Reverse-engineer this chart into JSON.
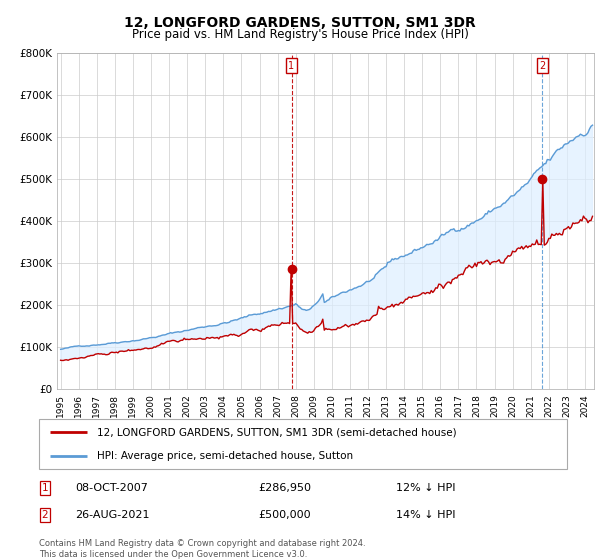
{
  "title": "12, LONGFORD GARDENS, SUTTON, SM1 3DR",
  "subtitle": "Price paid vs. HM Land Registry's House Price Index (HPI)",
  "ylim": [
    0,
    800000
  ],
  "yticks": [
    0,
    100000,
    200000,
    300000,
    400000,
    500000,
    600000,
    700000,
    800000
  ],
  "ytick_labels": [
    "£0",
    "£100K",
    "£200K",
    "£300K",
    "£400K",
    "£500K",
    "£600K",
    "£700K",
    "£800K"
  ],
  "hpi_color": "#5b9bd5",
  "price_color": "#c00000",
  "fill_color": "#ddeeff",
  "marker1_x": 2007.77,
  "marker2_x": 2021.65,
  "marker1_price": 286950,
  "marker2_price": 500000,
  "footnote": "Contains HM Land Registry data © Crown copyright and database right 2024.\nThis data is licensed under the Open Government Licence v3.0.",
  "legend_label1": "12, LONGFORD GARDENS, SUTTON, SM1 3DR (semi-detached house)",
  "legend_label2": "HPI: Average price, semi-detached house, Sutton",
  "ann1_date": "08-OCT-2007",
  "ann1_price": "£286,950",
  "ann1_hpi": "12% ↓ HPI",
  "ann2_date": "26-AUG-2021",
  "ann2_price": "£500,000",
  "ann2_hpi": "14% ↓ HPI",
  "xlim_left": 1994.8,
  "xlim_right": 2024.5,
  "xtick_years": [
    1995,
    1996,
    1997,
    1998,
    1999,
    2000,
    2001,
    2002,
    2003,
    2004,
    2005,
    2006,
    2007,
    2008,
    2009,
    2010,
    2011,
    2012,
    2013,
    2014,
    2015,
    2016,
    2017,
    2018,
    2019,
    2020,
    2021,
    2022,
    2023,
    2024
  ]
}
